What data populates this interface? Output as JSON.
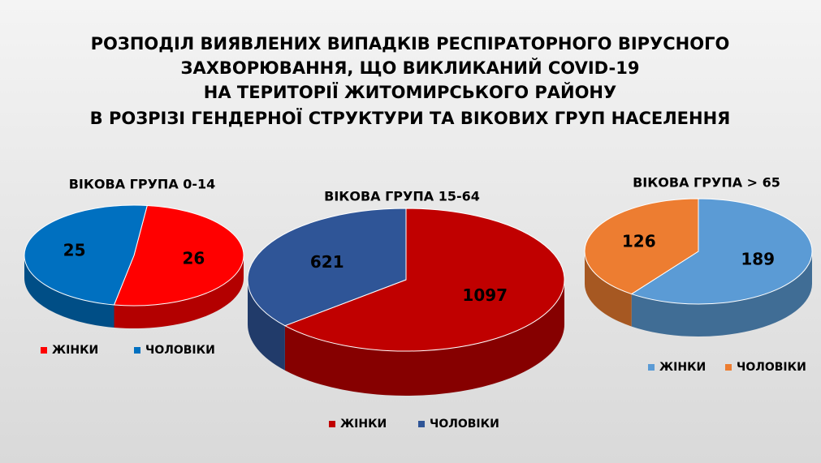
{
  "title": [
    "РОЗПОДІЛ ВИЯВЛЕНИХ ВИПАДКІВ РЕСПІРАТОРНОГО ВІРУСНОГО",
    "ЗАХВОРЮВАННЯ, ЩО ВИКЛИКАНИЙ COVID-19",
    "НА ТЕРИТОРІЇ ЖИТОМИРСЬКОГО РАЙОНУ",
    "В РОЗРІЗІ ГЕНДЕРНОЇ СТРУКТУРИ ТА ВІКОВИХ ГРУП НАСЕЛЕННЯ"
  ],
  "chart_data": [
    {
      "type": "pie",
      "title": "ВІКОВА ГРУПА 0-14",
      "categories": [
        "ЖІНКИ",
        "ЧОЛОВІКИ"
      ],
      "values": [
        26,
        25
      ],
      "colors": [
        "#ff0000",
        "#0070c0"
      ]
    },
    {
      "type": "pie",
      "title": "ВІКОВА ГРУПА 15-64",
      "categories": [
        "ЖІНКИ",
        "ЧОЛОВІКИ"
      ],
      "values": [
        1097,
        621
      ],
      "colors": [
        "#c00000",
        "#2f5597"
      ]
    },
    {
      "type": "pie",
      "title": "ВІКОВА ГРУПА > 65",
      "categories": [
        "ЖІНКИ",
        "ЧОЛОВІКИ"
      ],
      "values": [
        189,
        126
      ],
      "colors": [
        "#5b9bd5",
        "#ed7d31"
      ]
    }
  ]
}
